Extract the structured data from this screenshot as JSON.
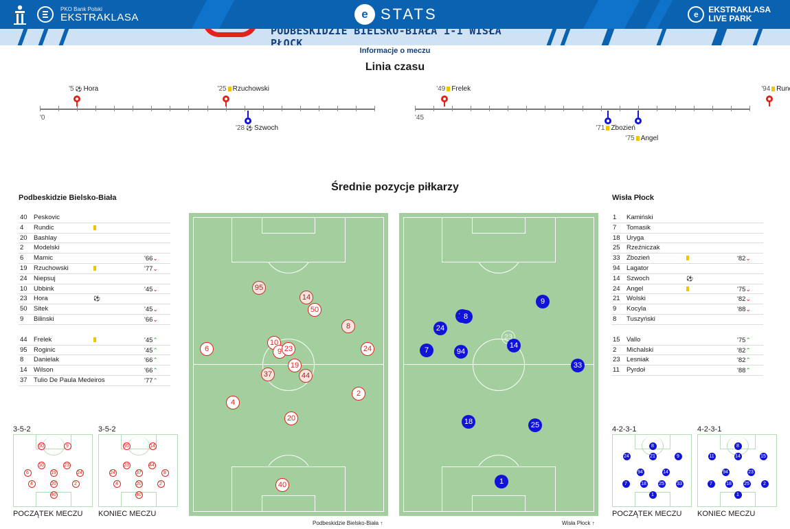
{
  "header": {
    "brand_small": "PKO Bank Polski",
    "brand_big": "EKSTRAKLASA",
    "stats_label": "STATS",
    "livepark_line1": "EKSTRAKLASA",
    "livepark_line2": "LIVE PARK",
    "pko_label": "PKO"
  },
  "match_title": "PODBESKIDZIE BIELSKO-BIAŁA 1-1 WISŁA PŁOCK",
  "info_link": "Informacje o meczu",
  "timeline": {
    "title": "Linia czasu",
    "first_half": {
      "start_label": "'0",
      "events": [
        {
          "minute": 5,
          "minute_label": "'5",
          "player": "Hora",
          "type": "goal",
          "team": "home"
        },
        {
          "minute": 25,
          "minute_label": "'25",
          "player": "Rzuchowski",
          "type": "yellow",
          "team": "home"
        },
        {
          "minute": 28,
          "minute_label": "'28",
          "player": "Szwoch",
          "type": "goal",
          "team": "away"
        }
      ]
    },
    "second_half": {
      "start_label": "'45",
      "events": [
        {
          "minute": 49,
          "minute_label": "'49",
          "player": "Frelek",
          "type": "yellow",
          "team": "home"
        },
        {
          "minute": 71,
          "minute_label": "'71",
          "player": "Zbozień",
          "type": "yellow",
          "team": "away"
        },
        {
          "minute": 75,
          "minute_label": "'75",
          "player": "Angel",
          "type": "yellow",
          "team": "away"
        },
        {
          "minute": 94,
          "minute_label": "'94",
          "player": "Rundic",
          "type": "yellow",
          "team": "home"
        }
      ]
    }
  },
  "positions_title": "Średnie pozycje piłkarzy",
  "home": {
    "name": "Podbeskidzie Bielsko-Biała",
    "starters": [
      {
        "num": "40",
        "name": "Peskovic"
      },
      {
        "num": "4",
        "name": "Rundic",
        "card": true
      },
      {
        "num": "20",
        "name": "Bashlay"
      },
      {
        "num": "2",
        "name": "Modelski"
      },
      {
        "num": "6",
        "name": "Mamic",
        "min": "'66",
        "sub": "out"
      },
      {
        "num": "19",
        "name": "Rzuchowski",
        "card": true,
        "min": "'77",
        "sub": "out"
      },
      {
        "num": "24",
        "name": "Niepsuj"
      },
      {
        "num": "10",
        "name": "Ubbink",
        "min": "'45",
        "sub": "out"
      },
      {
        "num": "23",
        "name": "Hora",
        "goal": true
      },
      {
        "num": "50",
        "name": "Sitek",
        "min": "'45",
        "sub": "out"
      },
      {
        "num": "9",
        "name": "Bilinski",
        "min": "'66",
        "sub": "out"
      }
    ],
    "subs": [
      {
        "num": "44",
        "name": "Frelek",
        "card": true,
        "min": "'45",
        "sub": "in"
      },
      {
        "num": "95",
        "name": "Roginic",
        "min": "'45",
        "sub": "in"
      },
      {
        "num": "8",
        "name": "Danielak",
        "min": "'66",
        "sub": "in"
      },
      {
        "num": "14",
        "name": "Wilson",
        "min": "'66",
        "sub": "in"
      },
      {
        "num": "37",
        "name": "Tulio De Paula Medeiros",
        "min": "'77",
        "sub": "in"
      }
    ],
    "pitch_caption": "Podbeskidzie Bielsko-Biała",
    "formation_start": "3-5-2",
    "formation_end": "3-5-2",
    "caption_start": "POCZĄTEK MECZU",
    "caption_end": "KONIEC MECZU"
  },
  "away": {
    "name": "Wisła Płock",
    "starters": [
      {
        "num": "1",
        "name": "Kamiński"
      },
      {
        "num": "7",
        "name": "Tomasik"
      },
      {
        "num": "18",
        "name": "Uryga"
      },
      {
        "num": "25",
        "name": "Rzeźniczak"
      },
      {
        "num": "33",
        "name": "Zbozień",
        "card": true,
        "min": "'82",
        "sub": "out"
      },
      {
        "num": "94",
        "name": "Lagator"
      },
      {
        "num": "14",
        "name": "Szwoch",
        "goal": true
      },
      {
        "num": "24",
        "name": "Angel",
        "card": true,
        "min": "'75",
        "sub": "out"
      },
      {
        "num": "21",
        "name": "Wolski",
        "min": "'82",
        "sub": "out"
      },
      {
        "num": "9",
        "name": "Kocyla",
        "min": "'88",
        "sub": "out"
      },
      {
        "num": "8",
        "name": "Tuszyński"
      }
    ],
    "subs": [
      {
        "num": "15",
        "name": "Vallo",
        "min": "'75",
        "sub": "in"
      },
      {
        "num": "2",
        "name": "Michalski",
        "min": "'82",
        "sub": "in"
      },
      {
        "num": "23",
        "name": "Lesniak",
        "min": "'82",
        "sub": "in"
      },
      {
        "num": "11",
        "name": "Pyrdoł",
        "min": "'88",
        "sub": "in"
      }
    ],
    "pitch_caption": "Wisła Płock",
    "formation_start": "4-2-3-1",
    "formation_end": "4-2-3-1",
    "caption_start": "POCZĄTEK MECZU",
    "caption_end": "KONIEC MECZU"
  },
  "colors": {
    "home": "#e2231a",
    "away": "#1114d8",
    "pitch": "#a3cf9f",
    "brand": "#0b62b0",
    "yellow_card": "#f2c400"
  },
  "icons": {
    "goal": "ball-icon",
    "card": "yellow-card-icon",
    "sub_out": "chevron-down-icon",
    "sub_in": "chevron-up-icon"
  }
}
